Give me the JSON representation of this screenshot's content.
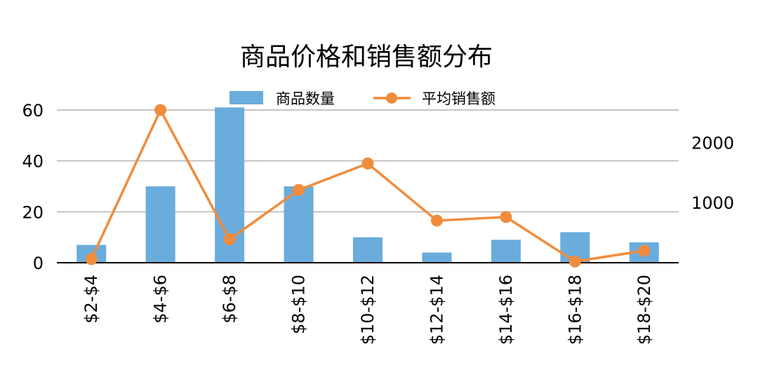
{
  "chart_data": {
    "type": "bar",
    "title": "商品价格和销售额分布",
    "categories": [
      "$2-$4",
      "$4-$6",
      "$6-$8",
      "$8-$10",
      "$10-$12",
      "$12-$14",
      "$14-$16",
      "$16-$18",
      "$18-$20"
    ],
    "series": [
      {
        "name": "商品数量",
        "type": "bar",
        "axis": "left",
        "color": "#6aacdc",
        "values": [
          7,
          30,
          61,
          30,
          10,
          4,
          9,
          12,
          8
        ]
      },
      {
        "name": "平均销售额",
        "type": "line",
        "axis": "right",
        "color": "#f08c3c",
        "values": [
          60,
          2540,
          390,
          1210,
          1650,
          700,
          760,
          20,
          200
        ]
      }
    ],
    "y_left": {
      "min": 0,
      "max": 60,
      "ticks": [
        0,
        20,
        40,
        60
      ]
    },
    "y_right": {
      "min": 0,
      "max": 2540,
      "ticks": [
        1000,
        2000
      ]
    },
    "grid": true,
    "legend_position": "top-center",
    "xlabel": "",
    "ylabel": ""
  }
}
